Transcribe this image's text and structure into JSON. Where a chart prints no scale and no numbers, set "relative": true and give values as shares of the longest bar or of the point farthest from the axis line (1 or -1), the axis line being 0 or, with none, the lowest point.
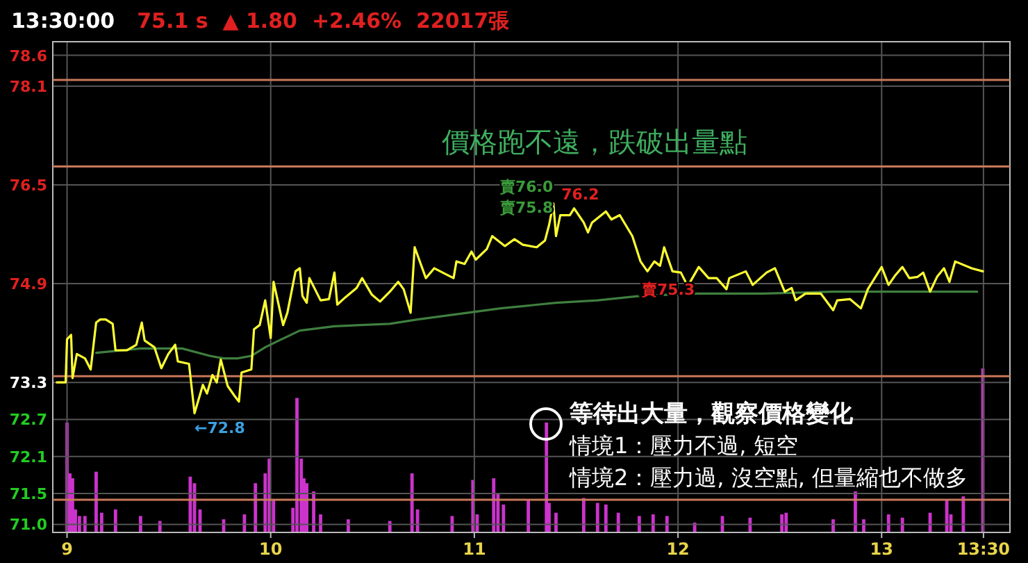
{
  "chart_data": [
    {
      "type": "line",
      "title": "13:30:00",
      "subtitle": "75.1 s  ▲ 1.80  +2.46%  22017張",
      "series": [
        {
          "color": "#ffff33",
          "x": [
            8.95,
            8.993,
            9.0,
            9.02,
            9.027,
            9.048,
            9.088,
            9.116,
            9.143,
            9.163,
            9.19,
            9.224,
            9.238,
            9.293,
            9.34,
            9.367,
            9.381,
            9.429,
            9.463,
            9.497,
            9.531,
            9.544,
            9.599,
            9.626,
            9.667,
            9.687,
            9.714,
            9.735,
            9.755,
            9.789,
            9.823,
            9.844,
            9.857,
            9.905,
            9.918,
            9.946,
            9.973,
            10.0,
            10.014,
            10.061,
            10.082,
            10.122,
            10.143,
            10.156,
            10.177,
            10.19,
            10.245,
            10.286,
            10.313,
            10.327,
            10.367,
            10.422,
            10.449,
            10.497,
            10.537,
            10.585,
            10.626,
            10.653,
            10.687,
            10.707,
            10.762,
            10.803,
            10.844,
            10.898,
            10.912,
            10.952,
            10.986,
            11.007,
            11.061,
            11.088,
            11.15,
            11.197,
            11.238,
            11.306,
            11.347,
            11.367,
            11.388,
            11.401,
            11.422,
            11.469,
            11.49,
            11.537,
            11.558,
            11.578,
            11.646,
            11.673,
            11.714,
            11.776,
            11.816,
            11.85,
            11.884,
            11.912,
            11.932,
            11.973,
            12.014,
            12.048,
            12.102,
            12.15,
            12.19,
            12.238,
            12.252,
            12.333,
            12.367,
            12.435,
            12.476,
            12.524,
            12.558,
            12.578,
            12.626,
            12.701,
            12.762,
            12.782,
            12.844,
            12.898,
            12.932,
            13.0,
            13.034,
            13.068,
            13.102,
            13.136,
            13.177,
            13.204,
            13.238,
            13.272,
            13.306,
            13.333,
            13.361,
            13.442,
            13.497
          ],
          "values": [
            73.3,
            73.3,
            74.0,
            74.07,
            73.37,
            73.76,
            73.69,
            73.51,
            74.27,
            74.32,
            74.32,
            74.25,
            73.82,
            73.82,
            73.91,
            74.27,
            73.98,
            73.87,
            73.53,
            73.76,
            73.91,
            73.64,
            73.6,
            72.8,
            73.26,
            73.12,
            73.42,
            73.3,
            73.67,
            73.24,
            73.08,
            72.99,
            73.46,
            73.51,
            74.16,
            74.23,
            74.63,
            74.02,
            74.93,
            74.23,
            74.43,
            75.1,
            75.15,
            74.7,
            74.59,
            74.99,
            74.63,
            74.65,
            75.08,
            74.56,
            74.68,
            74.83,
            74.99,
            74.72,
            74.61,
            74.77,
            74.93,
            74.81,
            74.43,
            75.49,
            74.99,
            75.15,
            75.08,
            74.99,
            75.26,
            75.22,
            75.42,
            75.29,
            75.46,
            75.67,
            75.51,
            75.62,
            75.53,
            75.49,
            75.6,
            75.85,
            76.2,
            75.67,
            76.01,
            76.01,
            76.12,
            75.89,
            75.73,
            75.89,
            76.07,
            75.94,
            76.01,
            75.67,
            75.26,
            75.1,
            75.26,
            75.19,
            75.49,
            75.1,
            75.08,
            74.86,
            75.17,
            74.99,
            74.99,
            74.81,
            74.99,
            75.1,
            74.88,
            75.08,
            75.15,
            74.77,
            74.83,
            74.63,
            74.74,
            74.74,
            74.47,
            74.63,
            74.65,
            74.5,
            74.81,
            75.17,
            74.88,
            75.04,
            75.17,
            74.99,
            75.01,
            75.08,
            74.77,
            75.01,
            75.15,
            74.93,
            75.26,
            75.15,
            75.1
          ]
        },
        {
          "color": "#3f7f3f",
          "x": [
            9.143,
            9.361,
            9.565,
            9.701,
            9.769,
            9.837,
            9.905,
            9.973,
            10.041,
            10.143,
            10.313,
            10.585,
            10.721,
            10.925,
            11.129,
            11.401,
            11.605,
            11.81,
            12.082,
            12.422,
            12.762,
            13.102,
            13.469
          ],
          "values": [
            73.78,
            73.85,
            73.85,
            73.73,
            73.69,
            73.69,
            73.73,
            73.87,
            73.98,
            74.14,
            74.21,
            74.25,
            74.32,
            74.41,
            74.5,
            74.59,
            74.63,
            74.7,
            74.74,
            74.74,
            74.77,
            74.77,
            74.77
          ]
        }
      ],
      "xlim": [
        8.93,
        13.63
      ],
      "ylim": [
        70.87,
        78.82
      ],
      "xticks": [
        9,
        10,
        11,
        12,
        13,
        {
          "value": 13.5,
          "label": "13:30"
        }
      ],
      "yticks": [
        78.6,
        78.1,
        76.5,
        74.9,
        73.3,
        72.7,
        72.1,
        71.5,
        {
          "value": 71,
          "label": "71.0"
        }
      ],
      "grid": true,
      "ref_lines": [
        {
          "axis": "y",
          "value": 78.2,
          "color": "#c8785a"
        },
        {
          "axis": "y",
          "value": 76.8,
          "color": "#c8785a"
        },
        {
          "axis": "y",
          "value": 73.4,
          "color": "#c8785a"
        },
        {
          "axis": "y",
          "value": 71.4,
          "color": "#c8785a"
        }
      ],
      "annotations": [
        "價格跑不遠，跌破出量點",
        "等待出大量，觀察價格變化",
        "情境1：壓力不過, 短空",
        "情境2：壓力過, 沒空點, 但量縮也不做多",
        {
          "text": "76.2",
          "x": 11.4,
          "y": 76.2
        },
        "賣76.0",
        "賣75.8",
        "賣75.3",
        {
          "text": "←72.8",
          "x": 9.626,
          "y": 72.8
        }
      ]
    },
    {
      "type": "bar",
      "relative": true,
      "color": "#cc33cc",
      "xlim": [
        8.93,
        13.63
      ],
      "x": [
        9.0,
        9.014,
        9.027,
        9.041,
        9.061,
        9.088,
        9.143,
        9.17,
        9.238,
        9.361,
        9.456,
        9.605,
        9.626,
        9.653,
        9.769,
        9.871,
        9.925,
        9.973,
        9.993,
        10.014,
        10.109,
        10.129,
        10.15,
        10.163,
        10.177,
        10.211,
        10.245,
        10.381,
        10.585,
        10.694,
        10.721,
        10.891,
        10.993,
        11.014,
        11.095,
        11.116,
        11.143,
        11.265,
        11.354,
        11.367,
        11.401,
        11.537,
        11.605,
        11.646,
        11.707,
        11.81,
        11.878,
        11.946,
        12.082,
        12.218,
        12.354,
        12.51,
        12.531,
        12.762,
        12.871,
        12.912,
        13.034,
        13.102,
        13.238,
        13.32,
        13.34,
        13.401,
        13.497
      ],
      "values": [
        0.67,
        0.36,
        0.33,
        0.14,
        0.1,
        0.1,
        0.37,
        0.12,
        0.14,
        0.1,
        0.07,
        0.34,
        0.3,
        0.14,
        0.08,
        0.11,
        0.3,
        0.36,
        0.45,
        0.2,
        0.15,
        0.82,
        0.45,
        0.33,
        0.3,
        0.25,
        0.11,
        0.08,
        0.07,
        0.36,
        0.14,
        0.1,
        0.32,
        0.11,
        0.33,
        0.24,
        0.17,
        0.2,
        0.67,
        0.18,
        0.12,
        0.21,
        0.18,
        0.17,
        0.12,
        0.1,
        0.11,
        0.1,
        0.06,
        0.1,
        0.09,
        0.11,
        0.12,
        0.08,
        0.25,
        0.08,
        0.11,
        0.09,
        0.12,
        0.2,
        0.11,
        0.22,
        1.0
      ]
    }
  ]
}
